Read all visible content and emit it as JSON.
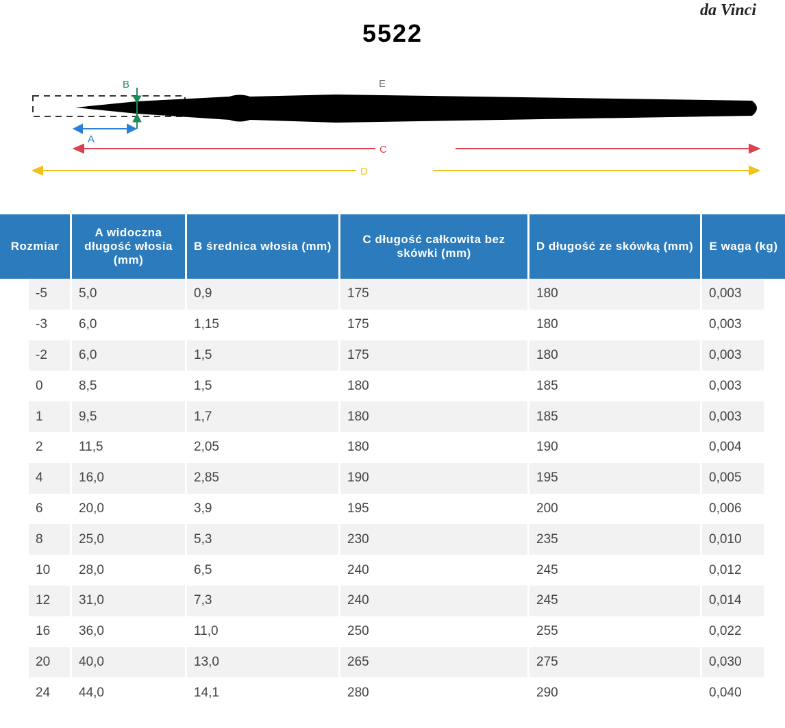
{
  "brand": "da Vinci",
  "title": "5522",
  "diagram": {
    "labels": {
      "a": "A",
      "b": "B",
      "c": "C",
      "d": "D",
      "e": "E"
    }
  },
  "table": {
    "headers": [
      "Rozmiar",
      "A widoczna długość włosia (mm)",
      "B średnica włosia (mm)",
      "C długość całkowita bez skówki (mm)",
      "D długość ze skówką (mm)",
      "E waga (kg)"
    ],
    "rows": [
      [
        "-5",
        "5,0",
        "0,9",
        "175",
        "180",
        "0,003"
      ],
      [
        "-3",
        "6,0",
        "1,15",
        "175",
        "180",
        "0,003"
      ],
      [
        "-2",
        "6,0",
        "1,5",
        "175",
        "180",
        "0,003"
      ],
      [
        "0",
        "8,5",
        "1,5",
        "180",
        "185",
        "0,003"
      ],
      [
        "1",
        "9,5",
        "1,7",
        "180",
        "185",
        "0,003"
      ],
      [
        "2",
        "11,5",
        "2,05",
        "180",
        "190",
        "0,004"
      ],
      [
        "4",
        "16,0",
        "2,85",
        "190",
        "195",
        "0,005"
      ],
      [
        "6",
        "20,0",
        "3,9",
        "195",
        "200",
        "0,006"
      ],
      [
        "8",
        "25,0",
        "5,3",
        "230",
        "235",
        "0,010"
      ],
      [
        "10",
        "28,0",
        "6,5",
        "240",
        "245",
        "0,012"
      ],
      [
        "12",
        "31,0",
        "7,3",
        "240",
        "245",
        "0,014"
      ],
      [
        "16",
        "36,0",
        "11,0",
        "250",
        "255",
        "0,022"
      ],
      [
        "20",
        "40,0",
        "13,0",
        "265",
        "275",
        "0,030"
      ],
      [
        "24",
        "44,0",
        "14,1",
        "280",
        "290",
        "0,040"
      ]
    ]
  }
}
